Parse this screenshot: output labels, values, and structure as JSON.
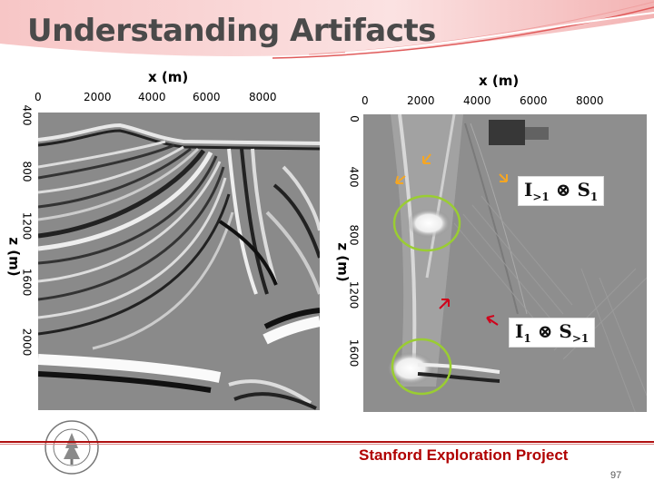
{
  "slide": {
    "title": "Understanding Artifacts",
    "footer": "Stanford Exploration Project",
    "page_number": "97",
    "accent_color": "#b00000"
  },
  "left_panel": {
    "x_axis_label": "x (m)",
    "x_ticks": [
      "0",
      "2000",
      "4000",
      "6000",
      "8000"
    ],
    "y_axis_label": "z (m)",
    "y_ticks": [
      "400",
      "800",
      "1200",
      "1600",
      "2000"
    ]
  },
  "right_panel": {
    "x_axis_label": "x (m)",
    "x_ticks": [
      "0",
      "2000",
      "4000",
      "6000",
      "8000"
    ],
    "y_axis_label": "z (m)",
    "y_ticks": [
      "0",
      "400",
      "800",
      "1200",
      "1600"
    ],
    "formula_top": {
      "base1": "I",
      "sub1": ">1",
      "op": "⊗",
      "base2": "S",
      "sub2": "1"
    },
    "formula_bottom": {
      "base1": "I",
      "sub1": "1",
      "op": "⊗",
      "base2": "S",
      "sub2": ">1"
    },
    "circle_color": "#9acd32",
    "arrow_colors": [
      "#f5a623",
      "#d0021b"
    ]
  },
  "logo": {
    "name": "stanford-seal"
  }
}
